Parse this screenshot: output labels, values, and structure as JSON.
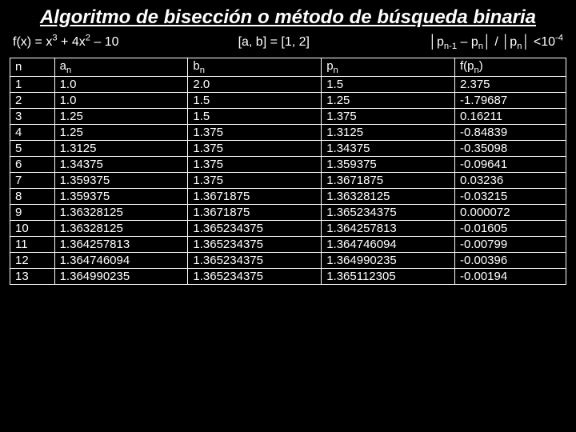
{
  "background_color": "#000000",
  "text_color": "#ffffff",
  "border_color": "#ffffff",
  "title": {
    "text": "Algoritmo de bisección o método de búsqueda binaria",
    "fontsize": 24,
    "fontweight": "bold",
    "italic": true,
    "underline": true,
    "align": "center"
  },
  "equations": {
    "fontsize": 16,
    "left_html": "f(x) = x<sup>3</sup> + 4x<sup>2</sup> – 10",
    "center_html": "[a, b] = [1, 2]",
    "right_html": "│p<sub>n-1</sub> – p<sub>n</sub>│ / │p<sub>n</sub>│ &lt;10<sup>-4</sup>"
  },
  "table": {
    "fontsize": 15,
    "header_fontsize": 15,
    "col_widths_pct": [
      8,
      24,
      24,
      24,
      20
    ],
    "headers_html": [
      "n",
      "a<sub>n</sub>",
      "b<sub>n</sub>",
      "p<sub>n</sub>",
      "f(p<sub>n</sub>)"
    ],
    "rows": [
      [
        "1",
        "1.0",
        "2.0",
        "1.5",
        " 2.375"
      ],
      [
        "2",
        "1.0",
        "1.5",
        "1.25",
        "-1.79687"
      ],
      [
        "3",
        "1.25",
        "1.5",
        "1.375",
        " 0.16211"
      ],
      [
        "4",
        "1.25",
        "1.375",
        "1.3125",
        "-0.84839"
      ],
      [
        "5",
        "1.3125",
        "1.375",
        "1.34375",
        "-0.35098"
      ],
      [
        "6",
        "1.34375",
        "1.375",
        "1.359375",
        "-0.09641"
      ],
      [
        "7",
        "1.359375",
        "1.375",
        "1.3671875",
        " 0.03236"
      ],
      [
        "8",
        "1.359375",
        "1.3671875",
        "1.36328125",
        "-0.03215"
      ],
      [
        "9",
        "1.36328125",
        "1.3671875",
        "1.365234375",
        " 0.000072"
      ],
      [
        "10",
        "1.36328125",
        "1.365234375",
        "1.364257813",
        "-0.01605"
      ],
      [
        "11",
        "1.364257813",
        "1.365234375",
        "1.364746094",
        "-0.00799"
      ],
      [
        "12",
        "1.364746094",
        "1.365234375",
        "1.364990235",
        "-0.00396"
      ],
      [
        "13",
        "1.364990235",
        "1.365234375",
        "1.365112305",
        "-0.00194"
      ]
    ]
  }
}
